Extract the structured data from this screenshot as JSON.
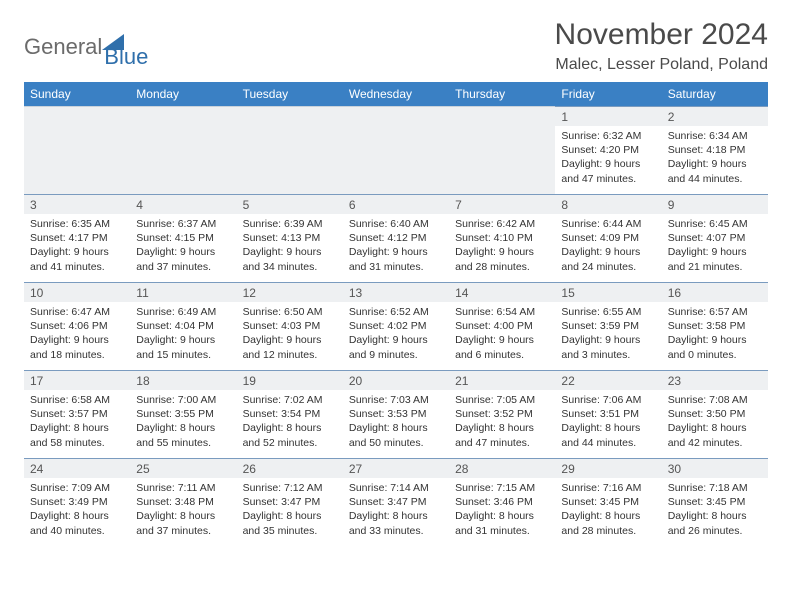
{
  "logo": {
    "text1": "General",
    "text2": "Blue",
    "color1": "#6b6b6b",
    "color2": "#2f6fab"
  },
  "title": "November 2024",
  "location": "Malec, Lesser Poland, Poland",
  "colors": {
    "header_bg": "#3a80c4",
    "header_text": "#ffffff",
    "row_border": "#7a9bbf",
    "daynum_bg": "#eef0f2",
    "text": "#333333"
  },
  "weekdays": [
    "Sunday",
    "Monday",
    "Tuesday",
    "Wednesday",
    "Thursday",
    "Friday",
    "Saturday"
  ],
  "weeks": [
    [
      null,
      null,
      null,
      null,
      null,
      {
        "n": "1",
        "sr": "6:32 AM",
        "ss": "4:20 PM",
        "dl1": "9 hours",
        "dl2": "and 47 minutes."
      },
      {
        "n": "2",
        "sr": "6:34 AM",
        "ss": "4:18 PM",
        "dl1": "9 hours",
        "dl2": "and 44 minutes."
      }
    ],
    [
      {
        "n": "3",
        "sr": "6:35 AM",
        "ss": "4:17 PM",
        "dl1": "9 hours",
        "dl2": "and 41 minutes."
      },
      {
        "n": "4",
        "sr": "6:37 AM",
        "ss": "4:15 PM",
        "dl1": "9 hours",
        "dl2": "and 37 minutes."
      },
      {
        "n": "5",
        "sr": "6:39 AM",
        "ss": "4:13 PM",
        "dl1": "9 hours",
        "dl2": "and 34 minutes."
      },
      {
        "n": "6",
        "sr": "6:40 AM",
        "ss": "4:12 PM",
        "dl1": "9 hours",
        "dl2": "and 31 minutes."
      },
      {
        "n": "7",
        "sr": "6:42 AM",
        "ss": "4:10 PM",
        "dl1": "9 hours",
        "dl2": "and 28 minutes."
      },
      {
        "n": "8",
        "sr": "6:44 AM",
        "ss": "4:09 PM",
        "dl1": "9 hours",
        "dl2": "and 24 minutes."
      },
      {
        "n": "9",
        "sr": "6:45 AM",
        "ss": "4:07 PM",
        "dl1": "9 hours",
        "dl2": "and 21 minutes."
      }
    ],
    [
      {
        "n": "10",
        "sr": "6:47 AM",
        "ss": "4:06 PM",
        "dl1": "9 hours",
        "dl2": "and 18 minutes."
      },
      {
        "n": "11",
        "sr": "6:49 AM",
        "ss": "4:04 PM",
        "dl1": "9 hours",
        "dl2": "and 15 minutes."
      },
      {
        "n": "12",
        "sr": "6:50 AM",
        "ss": "4:03 PM",
        "dl1": "9 hours",
        "dl2": "and 12 minutes."
      },
      {
        "n": "13",
        "sr": "6:52 AM",
        "ss": "4:02 PM",
        "dl1": "9 hours",
        "dl2": "and 9 minutes."
      },
      {
        "n": "14",
        "sr": "6:54 AM",
        "ss": "4:00 PM",
        "dl1": "9 hours",
        "dl2": "and 6 minutes."
      },
      {
        "n": "15",
        "sr": "6:55 AM",
        "ss": "3:59 PM",
        "dl1": "9 hours",
        "dl2": "and 3 minutes."
      },
      {
        "n": "16",
        "sr": "6:57 AM",
        "ss": "3:58 PM",
        "dl1": "9 hours",
        "dl2": "and 0 minutes."
      }
    ],
    [
      {
        "n": "17",
        "sr": "6:58 AM",
        "ss": "3:57 PM",
        "dl1": "8 hours",
        "dl2": "and 58 minutes."
      },
      {
        "n": "18",
        "sr": "7:00 AM",
        "ss": "3:55 PM",
        "dl1": "8 hours",
        "dl2": "and 55 minutes."
      },
      {
        "n": "19",
        "sr": "7:02 AM",
        "ss": "3:54 PM",
        "dl1": "8 hours",
        "dl2": "and 52 minutes."
      },
      {
        "n": "20",
        "sr": "7:03 AM",
        "ss": "3:53 PM",
        "dl1": "8 hours",
        "dl2": "and 50 minutes."
      },
      {
        "n": "21",
        "sr": "7:05 AM",
        "ss": "3:52 PM",
        "dl1": "8 hours",
        "dl2": "and 47 minutes."
      },
      {
        "n": "22",
        "sr": "7:06 AM",
        "ss": "3:51 PM",
        "dl1": "8 hours",
        "dl2": "and 44 minutes."
      },
      {
        "n": "23",
        "sr": "7:08 AM",
        "ss": "3:50 PM",
        "dl1": "8 hours",
        "dl2": "and 42 minutes."
      }
    ],
    [
      {
        "n": "24",
        "sr": "7:09 AM",
        "ss": "3:49 PM",
        "dl1": "8 hours",
        "dl2": "and 40 minutes."
      },
      {
        "n": "25",
        "sr": "7:11 AM",
        "ss": "3:48 PM",
        "dl1": "8 hours",
        "dl2": "and 37 minutes."
      },
      {
        "n": "26",
        "sr": "7:12 AM",
        "ss": "3:47 PM",
        "dl1": "8 hours",
        "dl2": "and 35 minutes."
      },
      {
        "n": "27",
        "sr": "7:14 AM",
        "ss": "3:47 PM",
        "dl1": "8 hours",
        "dl2": "and 33 minutes."
      },
      {
        "n": "28",
        "sr": "7:15 AM",
        "ss": "3:46 PM",
        "dl1": "8 hours",
        "dl2": "and 31 minutes."
      },
      {
        "n": "29",
        "sr": "7:16 AM",
        "ss": "3:45 PM",
        "dl1": "8 hours",
        "dl2": "and 28 minutes."
      },
      {
        "n": "30",
        "sr": "7:18 AM",
        "ss": "3:45 PM",
        "dl1": "8 hours",
        "dl2": "and 26 minutes."
      }
    ]
  ],
  "labels": {
    "sunrise": "Sunrise: ",
    "sunset": "Sunset: ",
    "daylight": "Daylight: "
  }
}
